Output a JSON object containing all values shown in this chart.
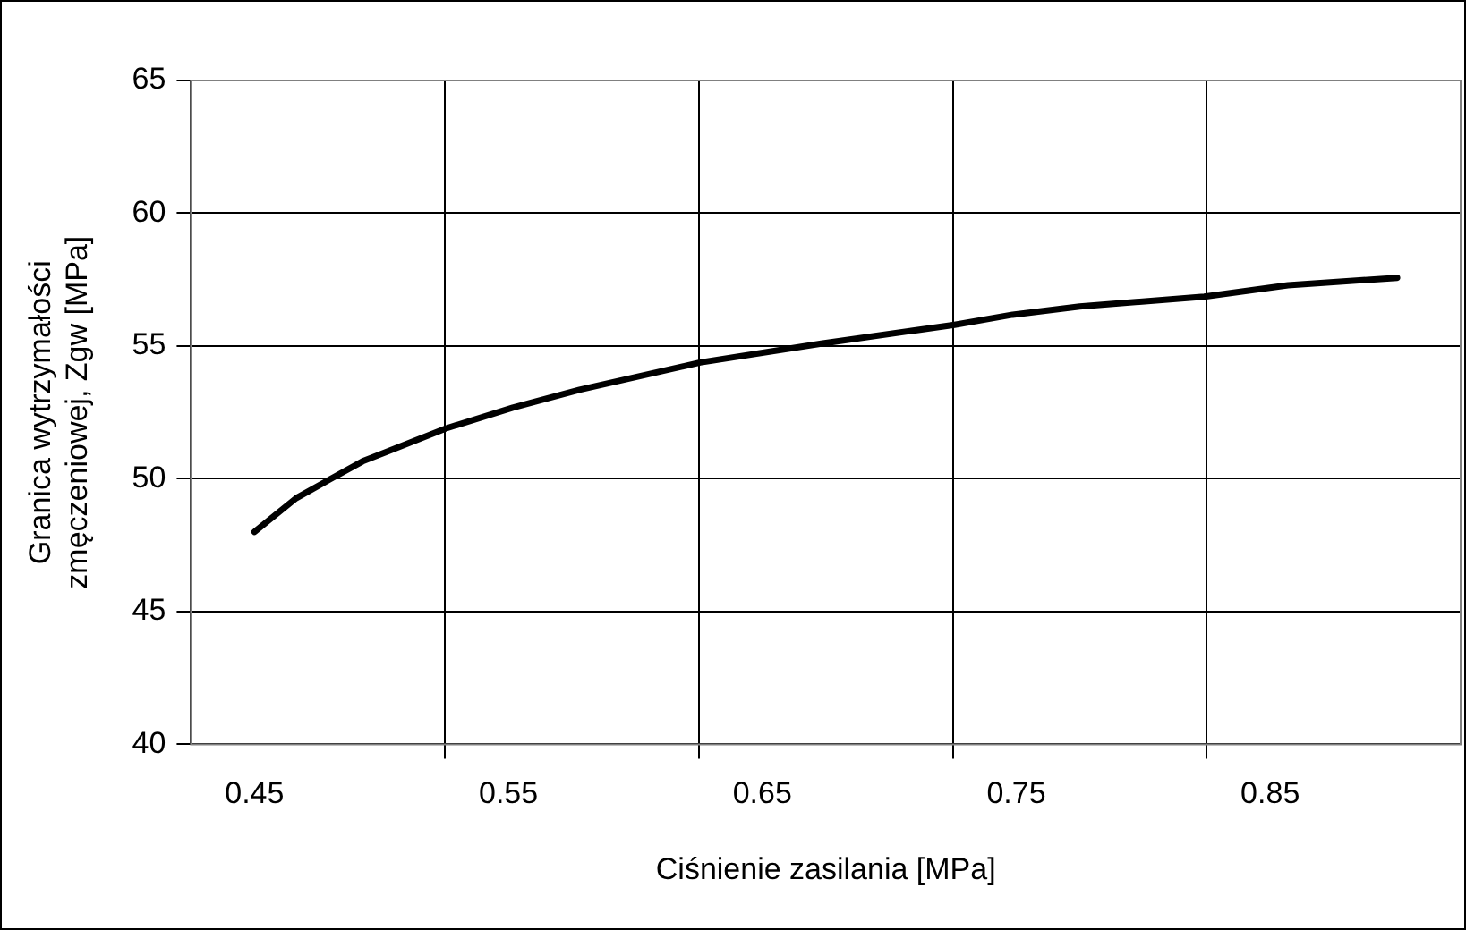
{
  "chart_data": {
    "type": "line",
    "xlabel": "Ciśnienie zasilania [MPa]",
    "ylabel": "Granica wytrzymałości\nzmęczeniowej, Zgw [MPa]",
    "x": [
      0.45,
      0.4664,
      0.4797,
      0.4926,
      0.5255,
      0.5517,
      0.578,
      0.6255,
      0.6732,
      0.7257,
      0.7486,
      0.775,
      0.824,
      0.857,
      0.9
    ],
    "series": [
      {
        "color": "#000000",
        "values": [
          48.0,
          49.27,
          49.98,
          50.66,
          51.9,
          52.68,
          53.35,
          54.38,
          55.09,
          55.8,
          56.18,
          56.49,
          56.86,
          57.29,
          57.57
        ]
      }
    ],
    "xlim": [
      0.425,
      0.925
    ],
    "xticks": [
      0.45,
      {
        "value": 0.525,
        "label": null
      },
      0.55,
      {
        "value": 0.625,
        "label": null
      },
      0.65,
      {
        "value": 0.725,
        "label": null
      },
      0.75,
      {
        "value": 0.825,
        "label": null
      },
      0.85
    ],
    "ylim": [
      40,
      65
    ],
    "yticks": [
      40,
      45,
      50,
      55,
      60,
      65
    ],
    "grid": true,
    "legend": false,
    "marker": "none",
    "line_style": "solid"
  }
}
